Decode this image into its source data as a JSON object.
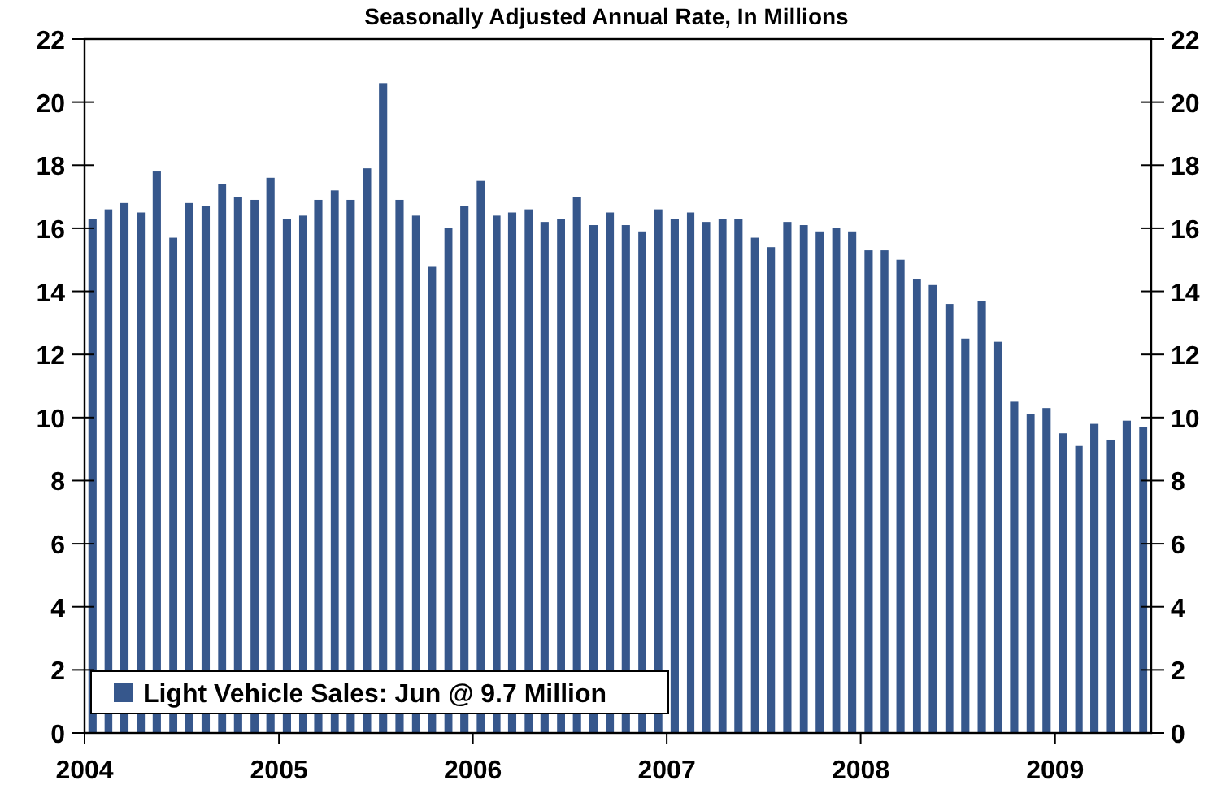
{
  "chart_data": {
    "type": "bar",
    "title": "Seasonally Adjusted Annual Rate, In Millions",
    "x": [
      "2004-01-16",
      "2004-02-15",
      "2004-03-16",
      "2004-04-16",
      "2004-05-16",
      "2004-06-16",
      "2004-07-16",
      "2004-08-16",
      "2004-09-16",
      "2004-10-16",
      "2004-11-16",
      "2004-12-16",
      "2005-01-16",
      "2005-02-15",
      "2005-03-16",
      "2005-04-16",
      "2005-05-16",
      "2005-06-16",
      "2005-07-16",
      "2005-08-16",
      "2005-09-16",
      "2005-10-16",
      "2005-11-16",
      "2005-12-16",
      "2006-01-16",
      "2006-02-15",
      "2006-03-16",
      "2006-04-16",
      "2006-05-16",
      "2006-06-16",
      "2006-07-16",
      "2006-08-16",
      "2006-09-16",
      "2006-10-16",
      "2006-11-16",
      "2006-12-16",
      "2007-01-16",
      "2007-02-15",
      "2007-03-16",
      "2007-04-16",
      "2007-05-16",
      "2007-06-16",
      "2007-07-16",
      "2007-08-16",
      "2007-09-16",
      "2007-10-16",
      "2007-11-16",
      "2007-12-16",
      "2008-01-16",
      "2008-02-15",
      "2008-03-16",
      "2008-04-16",
      "2008-05-16",
      "2008-06-16",
      "2008-07-16",
      "2008-08-16",
      "2008-09-16",
      "2008-10-16",
      "2008-11-16",
      "2008-12-16",
      "2009-01-16",
      "2009-02-15",
      "2009-03-16",
      "2009-04-16",
      "2009-05-16",
      "2009-06-16"
    ],
    "series": [
      {
        "name": "Light Vehicle Sales: Jun @ 9.7 Million",
        "color": "#36578c",
        "values": [
          16.3,
          16.6,
          16.8,
          16.5,
          17.8,
          15.7,
          16.8,
          16.7,
          17.4,
          17.0,
          16.9,
          17.6,
          16.3,
          16.4,
          16.9,
          17.2,
          16.9,
          17.9,
          20.6,
          16.9,
          16.4,
          14.8,
          16.0,
          16.7,
          17.5,
          16.4,
          16.5,
          16.6,
          16.2,
          16.3,
          17.0,
          16.1,
          16.5,
          16.1,
          15.9,
          16.6,
          16.3,
          16.5,
          16.2,
          16.3,
          16.3,
          15.7,
          15.4,
          16.2,
          16.1,
          15.9,
          16.0,
          15.9,
          15.3,
          15.3,
          15.0,
          14.4,
          14.2,
          13.6,
          12.5,
          13.7,
          12.4,
          10.5,
          10.1,
          10.3,
          9.5,
          9.1,
          9.8,
          9.3,
          9.9,
          9.7
        ]
      }
    ],
    "xlim": [
      "2004-01",
      "2009-07"
    ],
    "xticks": [
      {
        "value": "2004-01",
        "label": "2004"
      },
      {
        "value": "2005-01",
        "label": "2005"
      },
      {
        "value": "2006-01",
        "label": "2006"
      },
      {
        "value": "2007-01",
        "label": "2007"
      },
      {
        "value": "2008-01",
        "label": "2008"
      },
      {
        "value": "2009-01",
        "label": "2009"
      }
    ],
    "ylim": [
      0,
      22
    ],
    "yticks": [
      0,
      2,
      4,
      6,
      8,
      10,
      12,
      14,
      16,
      18,
      20,
      22
    ],
    "y2lim": [
      0,
      22
    ],
    "y2ticks": [
      0,
      2,
      4,
      6,
      8,
      10,
      12,
      14,
      16,
      18,
      20,
      22
    ],
    "legend": "bottom left",
    "grid": false
  }
}
